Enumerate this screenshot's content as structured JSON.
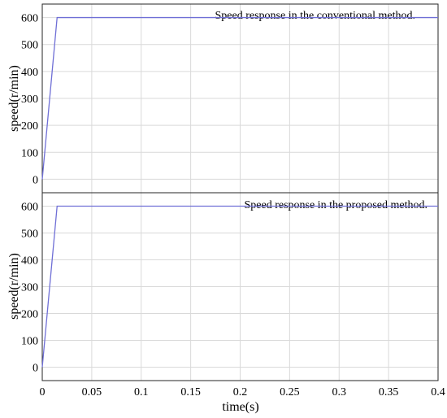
{
  "chart_data": [
    {
      "type": "line",
      "title": "Speed response in the conventional method.",
      "xlabel": "",
      "ylabel": "speed(r/min)",
      "xlim": [
        0,
        0.4
      ],
      "ylim": [
        -50,
        650
      ],
      "yticks": [
        0,
        100,
        200,
        300,
        400,
        500,
        600
      ],
      "xticks": [],
      "grid": true,
      "series": [
        {
          "color": "#6f6fd6",
          "x": [
            0,
            0.015,
            0.4
          ],
          "y": [
            0,
            600,
            600
          ]
        }
      ]
    },
    {
      "type": "line",
      "title": "Speed response in the proposed method.",
      "xlabel": "time(s)",
      "ylabel": "speed(r/min)",
      "xlim": [
        0,
        0.4
      ],
      "ylim": [
        -50,
        650
      ],
      "yticks": [
        0,
        100,
        200,
        300,
        400,
        500,
        600
      ],
      "xticks": [
        "0",
        "0.05",
        "0.1",
        "0.15",
        "0.2",
        "0.25",
        "0.3",
        "0.35",
        "0.4"
      ],
      "grid": true,
      "series": [
        {
          "color": "#6f6fd6",
          "x": [
            0,
            0.015,
            0.4
          ],
          "y": [
            0,
            600,
            600
          ]
        }
      ]
    }
  ]
}
